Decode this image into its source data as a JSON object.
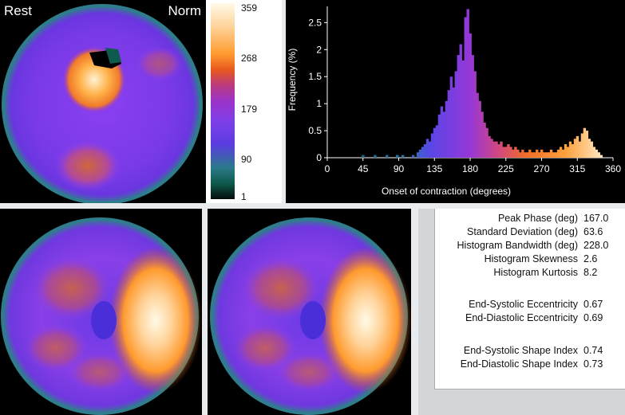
{
  "polar_top": {
    "left_label": "Rest",
    "right_label": "Norm"
  },
  "colorbar": {
    "ticks": [
      "359",
      "268",
      "179",
      "90",
      "1"
    ]
  },
  "chart_data": {
    "type": "bar",
    "xlabel": "Onset of contraction (degrees)",
    "ylabel": "Frequency (%)",
    "xlim": [
      0,
      360
    ],
    "ylim": [
      0,
      2.8
    ],
    "xticks": [
      "0",
      "45",
      "90",
      "135",
      "180",
      "225",
      "270",
      "315",
      "360"
    ],
    "yticks": [
      "0",
      "0.5",
      "1",
      "1.5",
      "2",
      "2.5"
    ],
    "grid": false,
    "bin_width": 3,
    "x": [
      45,
      60,
      75,
      88,
      95,
      108,
      114,
      117,
      120,
      123,
      126,
      129,
      132,
      135,
      138,
      141,
      144,
      147,
      150,
      153,
      156,
      159,
      162,
      165,
      168,
      171,
      174,
      177,
      180,
      183,
      186,
      189,
      192,
      195,
      198,
      201,
      204,
      207,
      210,
      213,
      216,
      219,
      222,
      225,
      228,
      231,
      234,
      237,
      240,
      243,
      246,
      249,
      252,
      255,
      258,
      261,
      264,
      267,
      270,
      273,
      276,
      279,
      282,
      285,
      288,
      291,
      294,
      297,
      300,
      303,
      306,
      309,
      312,
      315,
      318,
      321,
      324,
      327,
      330,
      333,
      336,
      339,
      342,
      345
    ],
    "y": [
      0.05,
      0.05,
      0.05,
      0.05,
      0.05,
      0.05,
      0.1,
      0.15,
      0.2,
      0.25,
      0.35,
      0.3,
      0.45,
      0.55,
      0.6,
      0.8,
      0.95,
      0.85,
      1.05,
      1.25,
      1.5,
      1.3,
      1.6,
      1.9,
      2.1,
      1.8,
      2.6,
      2.75,
      2.3,
      1.9,
      1.6,
      1.2,
      1.05,
      0.85,
      0.65,
      0.55,
      0.4,
      0.35,
      0.3,
      0.3,
      0.25,
      0.3,
      0.2,
      0.2,
      0.25,
      0.2,
      0.15,
      0.2,
      0.15,
      0.1,
      0.15,
      0.1,
      0.1,
      0.15,
      0.1,
      0.1,
      0.15,
      0.1,
      0.15,
      0.1,
      0.1,
      0.1,
      0.15,
      0.1,
      0.1,
      0.15,
      0.2,
      0.15,
      0.25,
      0.2,
      0.3,
      0.25,
      0.35,
      0.4,
      0.3,
      0.45,
      0.55,
      0.5,
      0.35,
      0.3,
      0.2,
      0.15,
      0.1,
      0.05
    ]
  },
  "stats": {
    "rows": [
      {
        "label": "Peak Phase (deg)",
        "value": "167.0"
      },
      {
        "label": "Standard Deviation (deg)",
        "value": "63.6"
      },
      {
        "label": "Histogram Bandwidth (deg)",
        "value": "228.0"
      },
      {
        "label": "Histogram Skewness",
        "value": "2.6"
      },
      {
        "label": "Histogram Kurtosis",
        "value": "8.2"
      },
      {
        "label": "End-Systolic Eccentricity",
        "value": "0.67"
      },
      {
        "label": "End-Diastolic Eccentricity",
        "value": "0.69"
      },
      {
        "label": "End-Systolic Shape Index",
        "value": "0.74"
      },
      {
        "label": "End-Diastolic Shape Index",
        "value": "0.73"
      }
    ]
  }
}
